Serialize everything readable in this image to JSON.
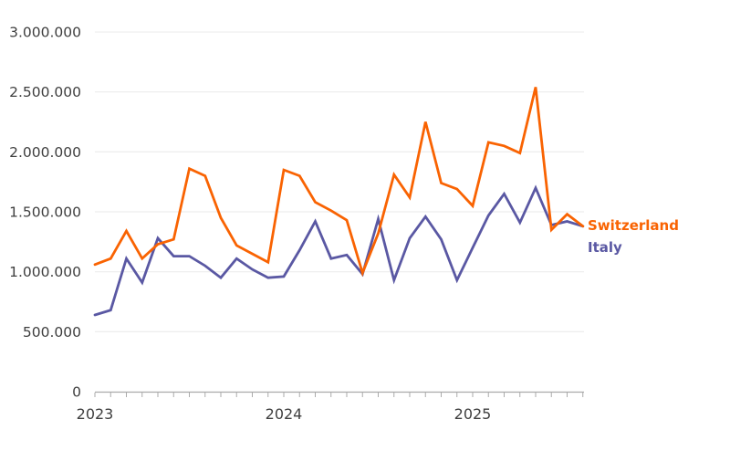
{
  "chart_data": {
    "type": "line",
    "title": "",
    "xlabel": "",
    "ylabel": "",
    "x_unit": "month",
    "months": [
      "2023-01",
      "2023-02",
      "2023-03",
      "2023-04",
      "2023-05",
      "2023-06",
      "2023-07",
      "2023-08",
      "2023-09",
      "2023-10",
      "2023-11",
      "2023-12",
      "2024-01",
      "2024-02",
      "2024-03",
      "2024-04",
      "2024-05",
      "2024-06",
      "2024-07",
      "2024-08",
      "2024-09",
      "2024-10",
      "2024-11",
      "2024-12",
      "2025-01",
      "2025-02",
      "2025-03",
      "2025-04",
      "2025-05",
      "2025-06",
      "2025-07",
      "2025-08"
    ],
    "x_year_labels": [
      "2023",
      "2024",
      "2025"
    ],
    "y_ticks": [
      "0",
      "500.000",
      "1.000.000",
      "1.500.000",
      "2.000.000",
      "2.500.000",
      "3.000.000"
    ],
    "y_tick_values": [
      0,
      500000,
      1000000,
      1500000,
      2000000,
      2500000,
      3000000
    ],
    "ylim": [
      0,
      3000000
    ],
    "grid": "horizontal",
    "legend_position": "line-end-right",
    "series": [
      {
        "name": "Switzerland",
        "color": "#f96302",
        "values": [
          1060000,
          1110000,
          1340000,
          1110000,
          1230000,
          1270000,
          1860000,
          1800000,
          1450000,
          1220000,
          1150000,
          1080000,
          1850000,
          1800000,
          1580000,
          1510000,
          1430000,
          990000,
          1320000,
          1810000,
          1620000,
          2250000,
          1740000,
          1690000,
          1550000,
          2080000,
          2050000,
          1990000,
          2540000,
          1350000,
          1480000,
          1380000
        ]
      },
      {
        "name": "Italy",
        "color": "#5a58a3",
        "values": [
          640000,
          680000,
          1110000,
          910000,
          1280000,
          1130000,
          1130000,
          1050000,
          950000,
          1110000,
          1020000,
          950000,
          960000,
          1180000,
          1420000,
          1110000,
          1140000,
          980000,
          1440000,
          930000,
          1280000,
          1460000,
          1270000,
          930000,
          1200000,
          1470000,
          1650000,
          1410000,
          1700000,
          1390000,
          1420000,
          1380000
        ]
      }
    ]
  }
}
